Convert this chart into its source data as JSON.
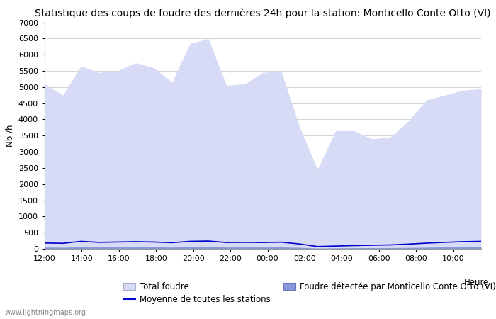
{
  "title": "Statistique des coups de foudre des dernières 24h pour la station: Monticello Conte Otto (VI)",
  "xlabel": "Heure",
  "ylabel": "Nb /h",
  "background_color": "#ffffff",
  "plot_background": "#ffffff",
  "ylim": [
    0,
    7000
  ],
  "yticks": [
    0,
    500,
    1000,
    1500,
    2000,
    2500,
    3000,
    3500,
    4000,
    4500,
    5000,
    5500,
    6000,
    6500,
    7000
  ],
  "x_tick_labels": [
    "12:00",
    "14:00",
    "16:00",
    "18:00",
    "20:00",
    "22:00",
    "00:00",
    "02:00",
    "04:00",
    "06:00",
    "08:00",
    "10:00"
  ],
  "total_foudre": [
    5100,
    4750,
    5650,
    5450,
    5500,
    5750,
    5600,
    5150,
    6350,
    6500,
    5050,
    5100,
    5450,
    5500,
    3800,
    2450,
    3650,
    3650,
    3400,
    3450,
    3950,
    4600,
    4750,
    4900,
    4950
  ],
  "foudre_detectee": [
    50,
    45,
    60,
    55,
    58,
    62,
    58,
    50,
    65,
    68,
    52,
    55,
    52,
    55,
    42,
    20,
    25,
    30,
    32,
    35,
    40,
    48,
    55,
    60,
    62
  ],
  "moyenne_stations": [
    180,
    170,
    230,
    200,
    210,
    220,
    210,
    190,
    230,
    240,
    195,
    200,
    195,
    205,
    150,
    70,
    85,
    100,
    110,
    120,
    145,
    175,
    200,
    220,
    230
  ],
  "color_total_foudre": "#d8dbf5",
  "color_foudre_detectee": "#8898d8",
  "color_moyenne": "#0000cc",
  "legend_total": "Total foudre",
  "legend_detectee": "Foudre détectée par Monticello Conte Otto (VI)",
  "legend_moyenne": "Moyenne de toutes les stations",
  "watermark": "www.lightningmaps.org",
  "title_fontsize": 10,
  "axis_fontsize": 8.5,
  "tick_fontsize": 8
}
